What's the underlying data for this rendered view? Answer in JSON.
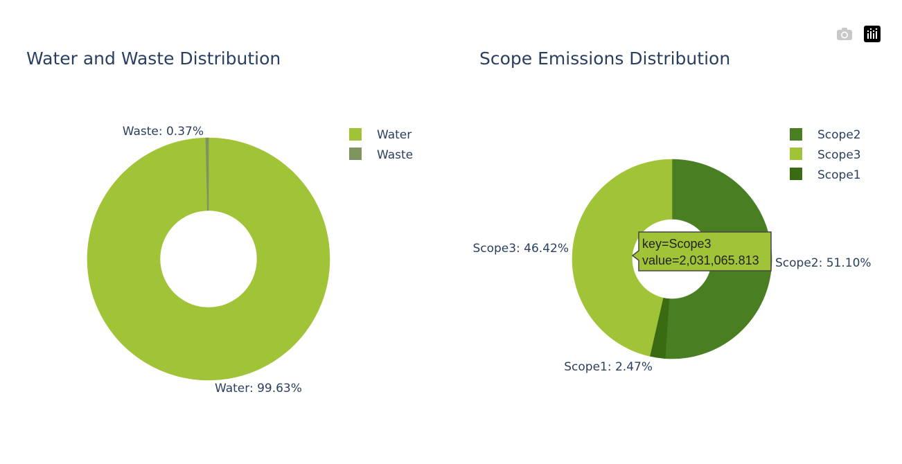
{
  "modebar": {
    "camera_icon": "camera-icon",
    "logo_icon": "plotly-logo-icon"
  },
  "chart_data": [
    {
      "type": "pie",
      "title": "Water and Waste Distribution",
      "hole": 0.4,
      "labels": [
        "Water",
        "Waste"
      ],
      "percents": [
        99.63,
        0.37
      ],
      "colors": [
        "#a1c337",
        "#7f9361"
      ],
      "slice_labels": [
        "Water: 99.63%",
        "Waste: 0.37%"
      ],
      "legend": [
        "Water",
        "Waste"
      ]
    },
    {
      "type": "pie",
      "title": "Scope Emissions Distribution",
      "hole": 0.4,
      "labels": [
        "Scope2",
        "Scope1",
        "Scope3"
      ],
      "percents": [
        51.1,
        2.47,
        46.42
      ],
      "colors": [
        "#4a7e23",
        "#3a6b12",
        "#a1c337"
      ],
      "slice_labels": [
        "Scope2: 51.10%",
        "Scope1: 2.47%",
        "Scope3: 46.42%"
      ],
      "legend": [
        "Scope2",
        "Scope3",
        "Scope1"
      ],
      "legend_colors": [
        "#4a7e23",
        "#a1c337",
        "#3a6b12"
      ],
      "tooltip": {
        "line1": "key=Scope3",
        "line2": "value=2,031,065.813"
      }
    }
  ]
}
